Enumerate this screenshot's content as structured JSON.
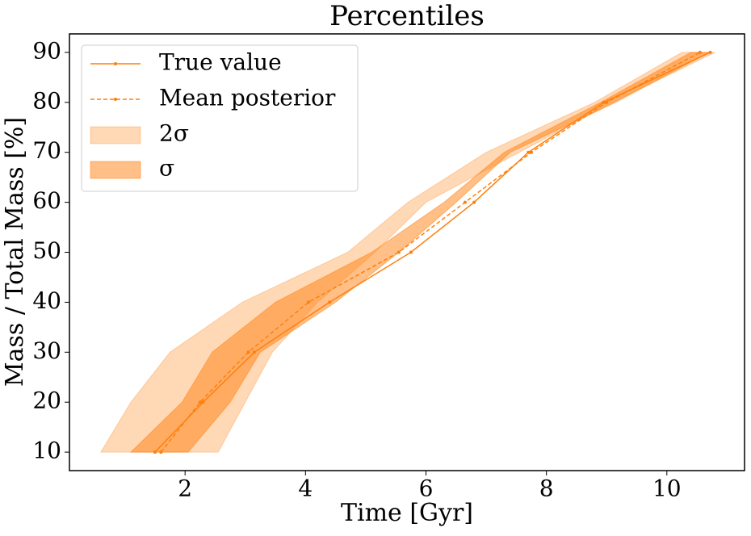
{
  "chart_data": {
    "type": "line",
    "title": "Percentiles",
    "x_label": "Time [Gyr]",
    "y_label": "Mass / Total Mass [%]",
    "y": [
      10,
      20,
      30,
      40,
      50,
      60,
      70,
      80,
      90
    ],
    "series": [
      {
        "name": "True value",
        "color": "#ff7f0e",
        "dash": false,
        "x": [
          1.5,
          2.3,
          3.15,
          4.4,
          5.75,
          6.8,
          7.7,
          8.95,
          10.72
        ]
      },
      {
        "name": "Mean posterior",
        "color": "#ff7f0e",
        "dash": true,
        "x": [
          1.6,
          2.25,
          3.05,
          4.05,
          5.55,
          6.65,
          7.75,
          9.0,
          10.55
        ]
      }
    ],
    "bands": [
      {
        "name": "2σ",
        "color": "#ff7f0e",
        "opacity": 0.3,
        "x_low": [
          0.6,
          1.1,
          1.75,
          2.95,
          4.7,
          5.7,
          7.0,
          8.8,
          10.25
        ],
        "x_high": [
          2.55,
          3.0,
          3.45,
          4.2,
          5.15,
          6.0,
          7.55,
          9.1,
          10.8
        ]
      },
      {
        "name": "σ",
        "color": "#ff7f0e",
        "opacity": 0.5,
        "x_low": [
          1.1,
          1.95,
          2.45,
          3.5,
          5.1,
          6.3,
          7.3,
          8.9,
          10.4
        ],
        "x_high": [
          2.05,
          2.75,
          3.25,
          4.5,
          5.55,
          6.5,
          7.4,
          9.15,
          10.7
        ]
      }
    ],
    "xlim": [
      0.08,
      11.29
    ],
    "ylim": [
      6.3,
      93.7
    ],
    "xticks": [
      2,
      4,
      6,
      8,
      10
    ],
    "yticks": [
      10,
      20,
      30,
      40,
      50,
      60,
      70,
      80,
      90
    ],
    "legend": "upper left"
  }
}
